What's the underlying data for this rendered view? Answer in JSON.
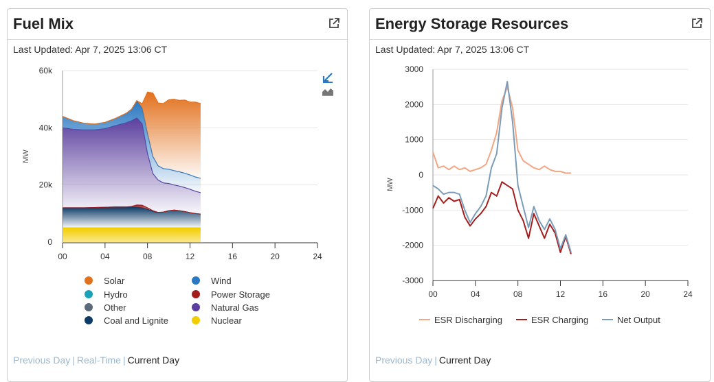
{
  "fuel_mix": {
    "title": "Fuel Mix",
    "last_updated": "Last Updated: Apr 7, 2025 13:06 CT",
    "footer": {
      "previous": "Previous Day",
      "realtime": "Real-Time",
      "current": "Current Day"
    },
    "tool_icons": [
      "zoom-out-icon",
      "area-chart-icon"
    ],
    "chart_data": {
      "type": "area",
      "stacked": true,
      "ylabel": "MW",
      "ylim": [
        0,
        60000
      ],
      "xlim": [
        0,
        24
      ],
      "x_ticks": [
        "00",
        "04",
        "08",
        "12",
        "16",
        "20",
        "24"
      ],
      "y_ticks": [
        "0",
        "20k",
        "40k",
        "60k"
      ],
      "x": [
        0,
        1,
        2,
        3,
        4,
        5,
        6,
        6.5,
        7,
        7.5,
        8,
        8.5,
        9,
        9.5,
        10,
        10.5,
        11,
        11.5,
        12,
        12.5,
        13
      ],
      "series": [
        {
          "name": "Nuclear",
          "color": "#f2cd00",
          "values": [
            5000,
            5000,
            5000,
            5000,
            5000,
            5000,
            5000,
            5000,
            5000,
            5000,
            5000,
            5000,
            5000,
            5000,
            5000,
            5000,
            5000,
            5000,
            5000,
            5000,
            5000
          ]
        },
        {
          "name": "Coal and Lignite",
          "color": "#0d3b66",
          "values": [
            7000,
            7000,
            7000,
            7100,
            7200,
            7300,
            7300,
            7300,
            7200,
            7000,
            6500,
            5800,
            5300,
            5500,
            6000,
            6200,
            6000,
            5700,
            5300,
            5000,
            4800
          ]
        },
        {
          "name": "Power Storage",
          "color": "#a51c1c",
          "values": [
            0,
            0,
            0,
            0,
            0,
            0,
            0,
            200,
            800,
            900,
            500,
            200,
            100,
            0,
            0,
            0,
            0,
            0,
            0,
            0,
            0
          ]
        },
        {
          "name": "Hydro",
          "color": "#1aa3b8",
          "values": [
            0,
            0,
            0,
            0,
            0,
            0,
            0,
            0,
            0,
            0,
            0,
            0,
            0,
            0,
            0,
            0,
            0,
            0,
            0,
            0,
            0
          ]
        },
        {
          "name": "Other",
          "color": "#5a6a7a",
          "values": [
            0,
            0,
            0,
            0,
            0,
            0,
            0,
            0,
            0,
            0,
            0,
            0,
            0,
            0,
            0,
            0,
            0,
            0,
            0,
            0,
            0
          ]
        },
        {
          "name": "Natural Gas",
          "color": "#5b3f9e",
          "values": [
            28000,
            27500,
            27300,
            27200,
            27500,
            28500,
            29500,
            30000,
            30500,
            28500,
            19000,
            13000,
            11300,
            10200,
            9500,
            8800,
            8600,
            8400,
            8200,
            7800,
            7500
          ]
        },
        {
          "name": "Wind",
          "color": "#2a78c2",
          "values": [
            4000,
            3000,
            2300,
            2000,
            2200,
            2500,
            3300,
            4000,
            6000,
            5500,
            7000,
            6000,
            5000,
            5000,
            5000,
            5000,
            5000,
            5000,
            5000,
            5000,
            5000
          ]
        },
        {
          "name": "Solar",
          "color": "#e2711d",
          "values": [
            0,
            0,
            0,
            0,
            0,
            0,
            0,
            0,
            0,
            1500,
            14500,
            22200,
            22000,
            22800,
            24300,
            25000,
            25000,
            25600,
            25500,
            26200,
            26200
          ]
        }
      ]
    },
    "legend": [
      {
        "label": "Solar",
        "color": "#e2711d"
      },
      {
        "label": "Wind",
        "color": "#2a78c2"
      },
      {
        "label": "Hydro",
        "color": "#1aa3b8"
      },
      {
        "label": "Power Storage",
        "color": "#a51c1c"
      },
      {
        "label": "Other",
        "color": "#5a6a7a"
      },
      {
        "label": "Natural Gas",
        "color": "#5b3f9e"
      },
      {
        "label": "Coal and Lignite",
        "color": "#0d3b66"
      },
      {
        "label": "Nuclear",
        "color": "#f2cd00"
      }
    ]
  },
  "esr": {
    "title": "Energy Storage Resources",
    "last_updated": "Last Updated: Apr 7, 2025 13:06 CT",
    "footer": {
      "previous": "Previous Day",
      "current": "Current Day"
    },
    "chart_data": {
      "type": "line",
      "ylabel": "MW",
      "ylim": [
        -3000,
        3000
      ],
      "xlim": [
        0,
        24
      ],
      "x_ticks": [
        "00",
        "04",
        "08",
        "12",
        "16",
        "20",
        "24"
      ],
      "y_ticks": [
        "3000",
        "2000",
        "1000",
        "0",
        "-1000",
        "-2000",
        "-3000"
      ],
      "x": [
        0,
        0.5,
        1,
        1.5,
        2,
        2.5,
        3,
        3.5,
        4,
        4.5,
        5,
        5.5,
        6,
        6.5,
        7,
        7.5,
        8,
        8.5,
        9,
        9.5,
        10,
        10.5,
        11,
        11.5,
        12,
        12.5,
        13
      ],
      "series": [
        {
          "name": "ESR Discharging",
          "color": "#f4a582",
          "values": [
            650,
            200,
            250,
            150,
            250,
            150,
            200,
            100,
            150,
            200,
            300,
            700,
            1200,
            2100,
            2500,
            1900,
            700,
            400,
            300,
            200,
            150,
            250,
            150,
            100,
            100,
            50,
            50
          ]
        },
        {
          "name": "ESR Charging",
          "color": "#a51c1c",
          "values": [
            -950,
            -600,
            -800,
            -650,
            -750,
            -700,
            -1200,
            -1450,
            -1250,
            -1100,
            -900,
            -500,
            -600,
            -200,
            -300,
            -400,
            -1000,
            -1300,
            -1800,
            -1100,
            -1450,
            -1800,
            -1400,
            -1650,
            -2200,
            -1750,
            -2250
          ]
        },
        {
          "name": "Net Output",
          "color": "#7a9cb8",
          "values": [
            -300,
            -400,
            -550,
            -500,
            -500,
            -550,
            -1000,
            -1350,
            -1100,
            -900,
            -600,
            200,
            600,
            1900,
            2650,
            1500,
            -300,
            -900,
            -1500,
            -900,
            -1300,
            -1550,
            -1250,
            -1550,
            -2100,
            -1700,
            -2200
          ]
        }
      ]
    },
    "legend": [
      {
        "label": "ESR Discharging",
        "color": "#f4a582"
      },
      {
        "label": "ESR Charging",
        "color": "#a51c1c"
      },
      {
        "label": "Net Output",
        "color": "#7a9cb8"
      }
    ]
  }
}
